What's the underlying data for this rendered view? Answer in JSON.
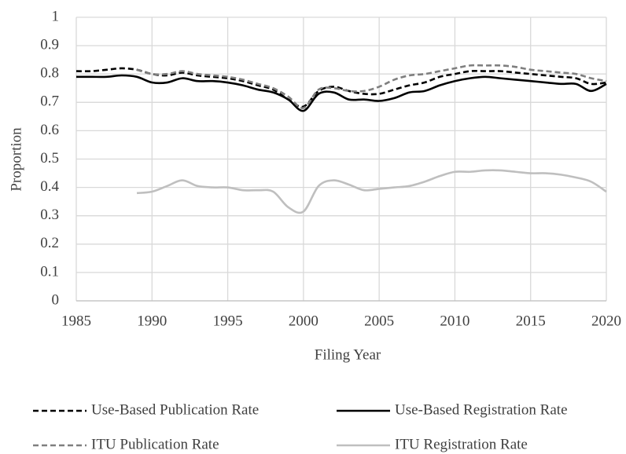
{
  "chart_data": {
    "type": "line",
    "x_label": "Filing Year",
    "y_label": "Proportion",
    "x": [
      1985,
      1986,
      1987,
      1988,
      1989,
      1990,
      1991,
      1992,
      1993,
      1994,
      1995,
      1996,
      1997,
      1998,
      1999,
      2000,
      2001,
      2002,
      2003,
      2004,
      2005,
      2006,
      2007,
      2008,
      2009,
      2010,
      2011,
      2012,
      2013,
      2014,
      2015,
      2016,
      2017,
      2018,
      2019,
      2020
    ],
    "series": [
      {
        "name": "Use-Based Publication Rate",
        "color": "#000000",
        "dash": true,
        "values": [
          0.81,
          0.81,
          0.815,
          0.82,
          0.815,
          0.8,
          0.795,
          0.805,
          0.795,
          0.79,
          0.785,
          0.775,
          0.76,
          0.745,
          0.71,
          0.685,
          0.74,
          0.755,
          0.74,
          0.73,
          0.73,
          0.745,
          0.76,
          0.77,
          0.79,
          0.8,
          0.81,
          0.81,
          0.81,
          0.805,
          0.8,
          0.795,
          0.79,
          0.785,
          0.765,
          0.77
        ]
      },
      {
        "name": "Use-Based Registration Rate",
        "color": "#000000",
        "dash": false,
        "values": [
          0.79,
          0.79,
          0.79,
          0.795,
          0.79,
          0.77,
          0.77,
          0.785,
          0.775,
          0.775,
          0.77,
          0.76,
          0.745,
          0.735,
          0.71,
          0.67,
          0.73,
          0.735,
          0.71,
          0.71,
          0.705,
          0.715,
          0.735,
          0.74,
          0.76,
          0.775,
          0.785,
          0.79,
          0.785,
          0.78,
          0.775,
          0.77,
          0.765,
          0.765,
          0.74,
          0.765
        ]
      },
      {
        "name": "ITU Publication Rate",
        "color": "#7f7f7f",
        "dash": true,
        "values": [
          null,
          null,
          null,
          null,
          0.815,
          0.8,
          0.8,
          0.81,
          0.8,
          0.795,
          0.79,
          0.78,
          0.765,
          0.75,
          0.72,
          0.68,
          0.745,
          0.75,
          0.74,
          0.74,
          0.755,
          0.78,
          0.795,
          0.8,
          0.81,
          0.82,
          0.83,
          0.83,
          0.83,
          0.825,
          0.815,
          0.81,
          0.805,
          0.8,
          0.785,
          0.775
        ]
      },
      {
        "name": "ITU Registration Rate",
        "color": "#bfbfbf",
        "dash": false,
        "values": [
          null,
          null,
          null,
          null,
          0.38,
          0.385,
          0.405,
          0.425,
          0.405,
          0.4,
          0.4,
          0.39,
          0.39,
          0.385,
          0.33,
          0.315,
          0.405,
          0.425,
          0.41,
          0.39,
          0.395,
          0.4,
          0.405,
          0.42,
          0.44,
          0.455,
          0.455,
          0.46,
          0.46,
          0.455,
          0.45,
          0.45,
          0.445,
          0.435,
          0.42,
          0.385
        ]
      }
    ],
    "xlim": [
      1985,
      2020
    ],
    "xticks": [
      1985,
      1990,
      1995,
      2000,
      2005,
      2010,
      2015,
      2020
    ],
    "ylim": [
      0,
      1
    ],
    "yticks": [
      0,
      0.1,
      0.2,
      0.3,
      0.4,
      0.5,
      0.6,
      0.7,
      0.8,
      0.9,
      1
    ],
    "grid": true,
    "legend": "bottom"
  }
}
